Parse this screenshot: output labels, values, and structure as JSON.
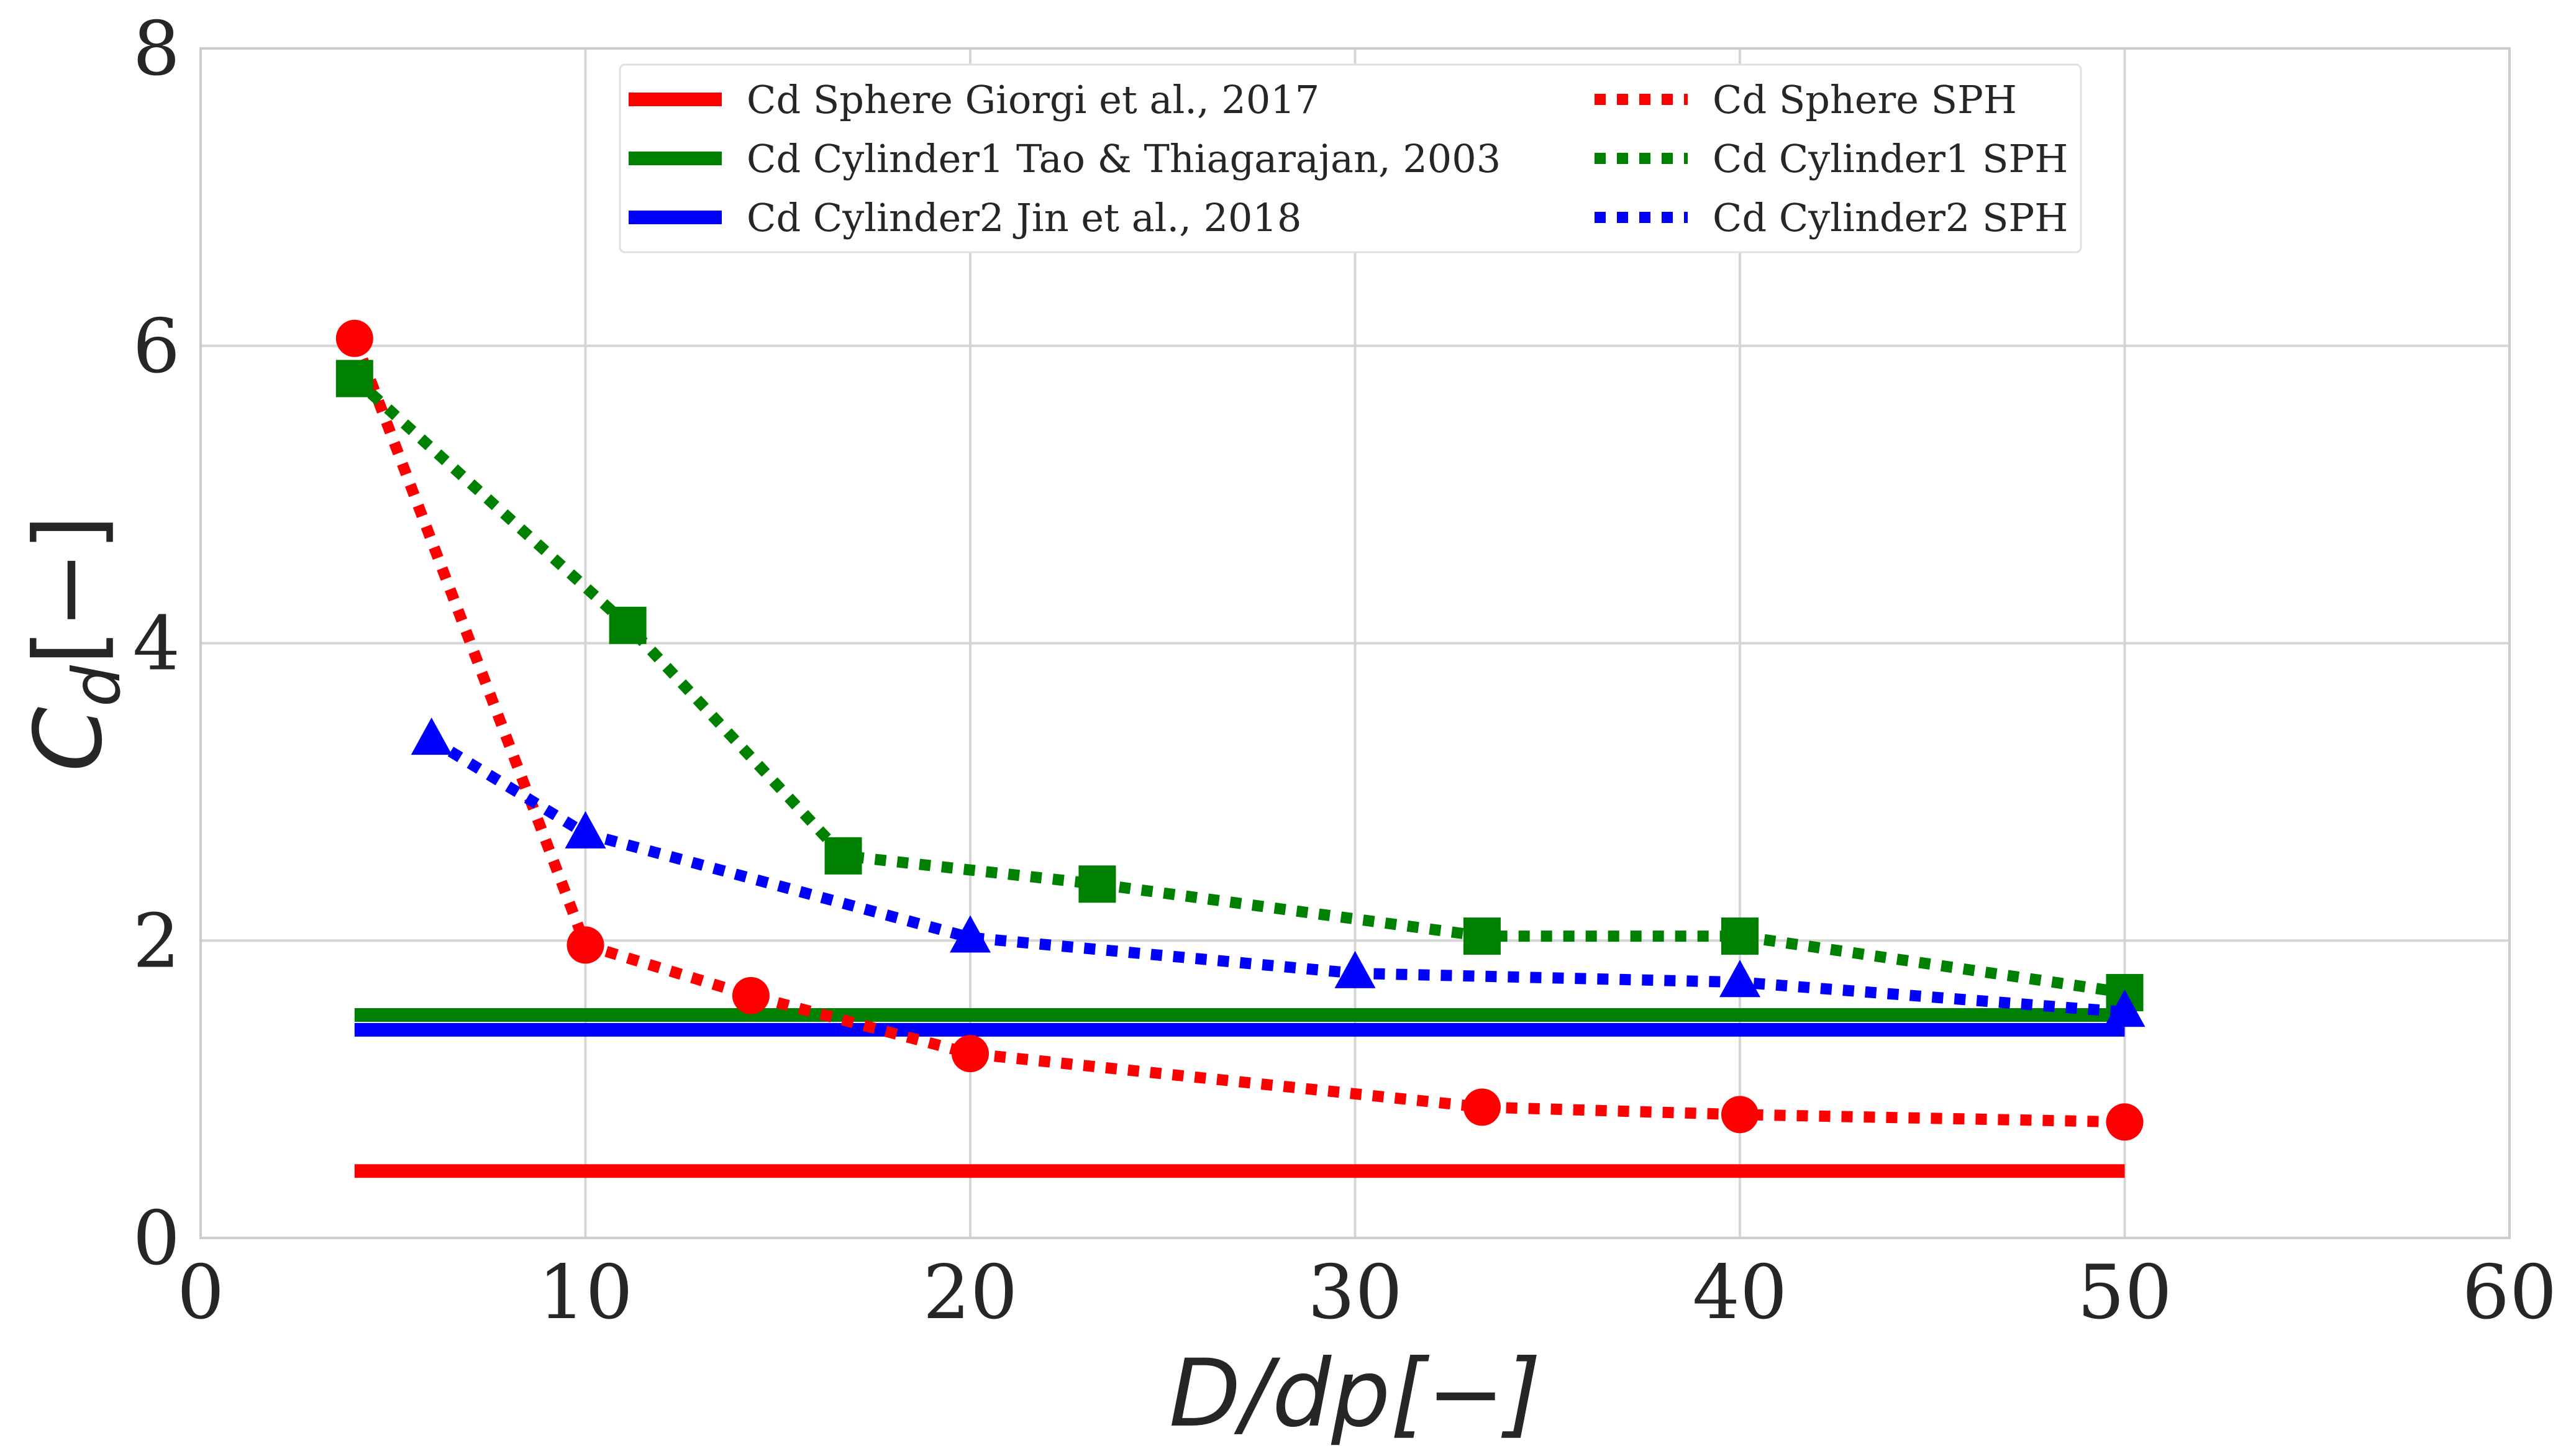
{
  "chart_data": {
    "type": "line",
    "title": "",
    "xlabel": "D/dp[−]",
    "ylabel": "C_d[−]",
    "xlim": [
      0,
      60
    ],
    "ylim": [
      0,
      8
    ],
    "xticks": [
      0,
      10,
      20,
      30,
      40,
      50,
      60
    ],
    "yticks": [
      0,
      2,
      4,
      6,
      8
    ],
    "xtick_labels": [
      "0",
      "10",
      "20",
      "30",
      "40",
      "50",
      "60"
    ],
    "ytick_labels": [
      "0",
      "2",
      "4",
      "6",
      "8"
    ],
    "grid": true,
    "legend_position": "top-center",
    "series": [
      {
        "name": "Cd Sphere Giorgi et al., 2017",
        "style": "solid",
        "color": "#ff0000",
        "marker": "none",
        "x": [
          4,
          50
        ],
        "y": [
          0.45,
          0.45
        ]
      },
      {
        "name": "Cd Cylinder1 Tao & Thiagarajan, 2003",
        "style": "solid",
        "color": "#008000",
        "marker": "none",
        "x": [
          4,
          50
        ],
        "y": [
          1.5,
          1.5
        ]
      },
      {
        "name": "Cd Cylinder2 Jin et al., 2018",
        "style": "solid",
        "color": "#0000ff",
        "marker": "none",
        "x": [
          4,
          50
        ],
        "y": [
          1.4,
          1.4
        ]
      },
      {
        "name": "Cd Sphere SPH",
        "style": "dotted",
        "color": "#ff0000",
        "marker": "circle",
        "x": [
          4,
          10,
          14.3,
          20,
          33.3,
          40,
          50
        ],
        "y": [
          6.05,
          1.97,
          1.63,
          1.24,
          0.88,
          0.83,
          0.78
        ]
      },
      {
        "name": "Cd Cylinder1 SPH",
        "style": "dotted",
        "color": "#008000",
        "marker": "square",
        "x": [
          4,
          11.1,
          16.7,
          23.3,
          33.3,
          40,
          50
        ],
        "y": [
          5.78,
          4.12,
          2.57,
          2.38,
          2.03,
          2.03,
          1.65
        ]
      },
      {
        "name": "Cd Cylinder2 SPH",
        "style": "dotted",
        "color": "#0000ff",
        "marker": "triangle",
        "x": [
          6,
          10,
          20,
          30,
          40,
          50
        ],
        "y": [
          3.35,
          2.72,
          2.02,
          1.78,
          1.72,
          1.52
        ]
      }
    ]
  }
}
